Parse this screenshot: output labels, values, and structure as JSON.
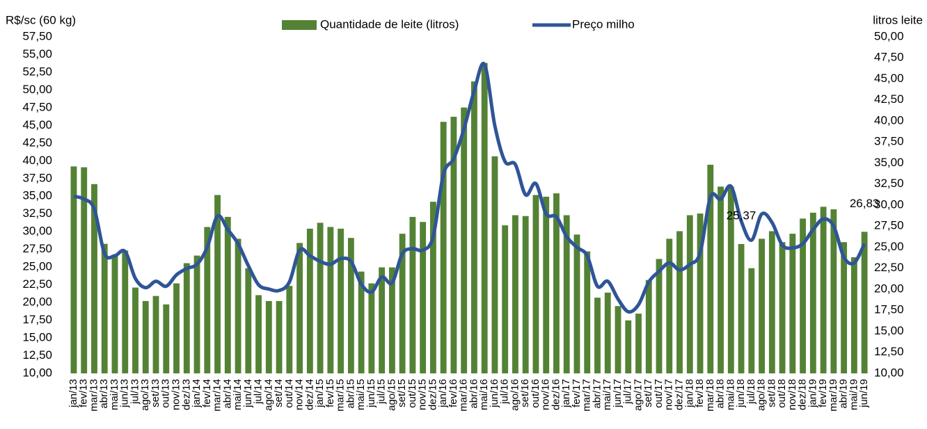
{
  "chart_data": {
    "type": "combo",
    "y_label": "R$/sc (60 kg)",
    "y2_label": "litros leite",
    "categories": [
      "jan/13",
      "fev/13",
      "mar/13",
      "abr/13",
      "mai/13",
      "jun/13",
      "jul/13",
      "ago/13",
      "set/13",
      "out/13",
      "nov/13",
      "dez/13",
      "jan/14",
      "fev/14",
      "mar/14",
      "abr/14",
      "mai/14",
      "jun/14",
      "jul/14",
      "ago/14",
      "set/14",
      "out/14",
      "nov/14",
      "dez/14",
      "jan/15",
      "fev/15",
      "mar/15",
      "abr/15",
      "mai/15",
      "jun/15",
      "jul/15",
      "ago/15",
      "set/15",
      "out/15",
      "nov/15",
      "dez/15",
      "jan/16",
      "fev/16",
      "mar/16",
      "abr/16",
      "mai/16",
      "jun/16",
      "jul/16",
      "ago/16",
      "set/16",
      "out/16",
      "nov/16",
      "dez/16",
      "jan/17",
      "fev/17",
      "mar/17",
      "abr/17",
      "mai/17",
      "jun/17",
      "jul/17",
      "ago/17",
      "set/17",
      "out/17",
      "nov/17",
      "dez/17",
      "jan/18",
      "fev/18",
      "mar/18",
      "abr/18",
      "mai/18",
      "jun/18",
      "jul/18",
      "ago/18",
      "set/18",
      "out/18",
      "nov/18",
      "dez/18",
      "jan/19",
      "fev/19",
      "mar/19",
      "abr/19",
      "mai/19",
      "jun/19"
    ],
    "series": [
      {
        "name": "Quantidade de leite (litros)",
        "type": "bar",
        "axis": "y2",
        "color": "#548235",
        "values": [
          34.6,
          34.5,
          32.5,
          25.4,
          24.1,
          24.6,
          20.2,
          18.6,
          19.2,
          18.2,
          20.7,
          23.1,
          24.0,
          27.4,
          31.2,
          28.6,
          26.0,
          22.5,
          19.3,
          18.6,
          18.6,
          20.4,
          25.5,
          27.2,
          27.9,
          27.4,
          27.2,
          26.1,
          22.1,
          20.7,
          22.6,
          22.6,
          26.6,
          28.6,
          28.0,
          30.4,
          39.9,
          40.5,
          41.6,
          44.7,
          46.9,
          35.8,
          27.6,
          28.8,
          28.7,
          31.2,
          31.0,
          31.4,
          28.8,
          26.5,
          24.5,
          19.0,
          19.6,
          18.0,
          16.3,
          17.1,
          21.1,
          23.6,
          26.0,
          26.9,
          28.8,
          29.0,
          34.8,
          32.2,
          32.2,
          25.37,
          22.5,
          26.0,
          26.9,
          25.6,
          26.6,
          28.4,
          29.1,
          29.8,
          29.5,
          25.6,
          23.8,
          26.83
        ],
        "value_labels": [
          null,
          null,
          null,
          null,
          null,
          null,
          null,
          null,
          null,
          null,
          null,
          null,
          null,
          null,
          null,
          null,
          null,
          null,
          null,
          null,
          null,
          null,
          null,
          null,
          null,
          null,
          null,
          null,
          null,
          null,
          null,
          null,
          null,
          null,
          null,
          null,
          null,
          null,
          null,
          null,
          null,
          null,
          null,
          null,
          null,
          null,
          null,
          null,
          null,
          null,
          null,
          null,
          null,
          null,
          null,
          null,
          null,
          null,
          null,
          null,
          null,
          null,
          null,
          null,
          null,
          "25,37",
          null,
          null,
          null,
          null,
          null,
          null,
          null,
          null,
          null,
          null,
          null,
          "26,83"
        ]
      },
      {
        "name": "Preço milho",
        "type": "line",
        "axis": "y",
        "color": "#2f5597",
        "values": [
          35.0,
          34.6,
          33.2,
          26.9,
          26.6,
          27.2,
          23.4,
          22.1,
          23.0,
          22.3,
          23.9,
          24.8,
          25.4,
          27.8,
          32.2,
          30.3,
          28.3,
          25.2,
          22.5,
          21.9,
          21.7,
          22.9,
          27.4,
          26.6,
          25.8,
          25.4,
          26.2,
          25.8,
          22.6,
          21.5,
          23.6,
          22.8,
          26.9,
          27.6,
          27.4,
          29.3,
          38.1,
          40.3,
          44.5,
          49.9,
          53.6,
          45.0,
          39.9,
          39.5,
          35.2,
          36.8,
          32.5,
          32.1,
          29.3,
          27.8,
          26.6,
          22.3,
          23.0,
          20.5,
          18.7,
          19.7,
          22.9,
          24.4,
          25.6,
          24.6,
          25.4,
          27.0,
          34.9,
          34.6,
          36.4,
          31.5,
          28.8,
          32.5,
          31.3,
          28.1,
          27.7,
          28.3,
          30.3,
          31.8,
          30.8,
          26.4,
          25.6,
          28.3
        ]
      }
    ],
    "ylim": [
      10,
      57.5
    ],
    "yticks": [
      {
        "value": 10,
        "label": "10,00"
      },
      {
        "value": 12.5,
        "label": "12,50"
      },
      {
        "value": 15,
        "label": "15,00"
      },
      {
        "value": 17.5,
        "label": "17,50"
      },
      {
        "value": 20,
        "label": "20,00"
      },
      {
        "value": 22.5,
        "label": "22,50"
      },
      {
        "value": 25,
        "label": "25,00"
      },
      {
        "value": 27.5,
        "label": "27,50"
      },
      {
        "value": 30,
        "label": "30,00"
      },
      {
        "value": 32.5,
        "label": "32,50"
      },
      {
        "value": 35,
        "label": "35,00"
      },
      {
        "value": 37.5,
        "label": "37,50"
      },
      {
        "value": 40,
        "label": "40,00"
      },
      {
        "value": 42.5,
        "label": "42,50"
      },
      {
        "value": 45,
        "label": "45,00"
      },
      {
        "value": 47.5,
        "label": "47,50"
      },
      {
        "value": 50,
        "label": "50,00"
      },
      {
        "value": 52.5,
        "label": "52,50"
      },
      {
        "value": 55,
        "label": "55,00"
      },
      {
        "value": 57.5,
        "label": "57,50"
      }
    ],
    "y2lim": [
      10,
      50
    ],
    "y2ticks": [
      {
        "value": 10,
        "label": "10,00"
      },
      {
        "value": 12.5,
        "label": "12,50"
      },
      {
        "value": 15,
        "label": "15,00"
      },
      {
        "value": 17.5,
        "label": "17,50"
      },
      {
        "value": 20,
        "label": "20,00"
      },
      {
        "value": 22.5,
        "label": "22,50"
      },
      {
        "value": 25,
        "label": "25,00"
      },
      {
        "value": 27.5,
        "label": "27,50"
      },
      {
        "value": 30,
        "label": "30,00"
      },
      {
        "value": 32.5,
        "label": "32,50"
      },
      {
        "value": 35,
        "label": "35,00"
      },
      {
        "value": 37.5,
        "label": "37,50"
      },
      {
        "value": 40,
        "label": "40,00"
      },
      {
        "value": 42.5,
        "label": "42,50"
      },
      {
        "value": 45,
        "label": "45,00"
      },
      {
        "value": 47.5,
        "label": "47,50"
      },
      {
        "value": 50,
        "label": "50,00"
      }
    ],
    "legend": "top"
  }
}
